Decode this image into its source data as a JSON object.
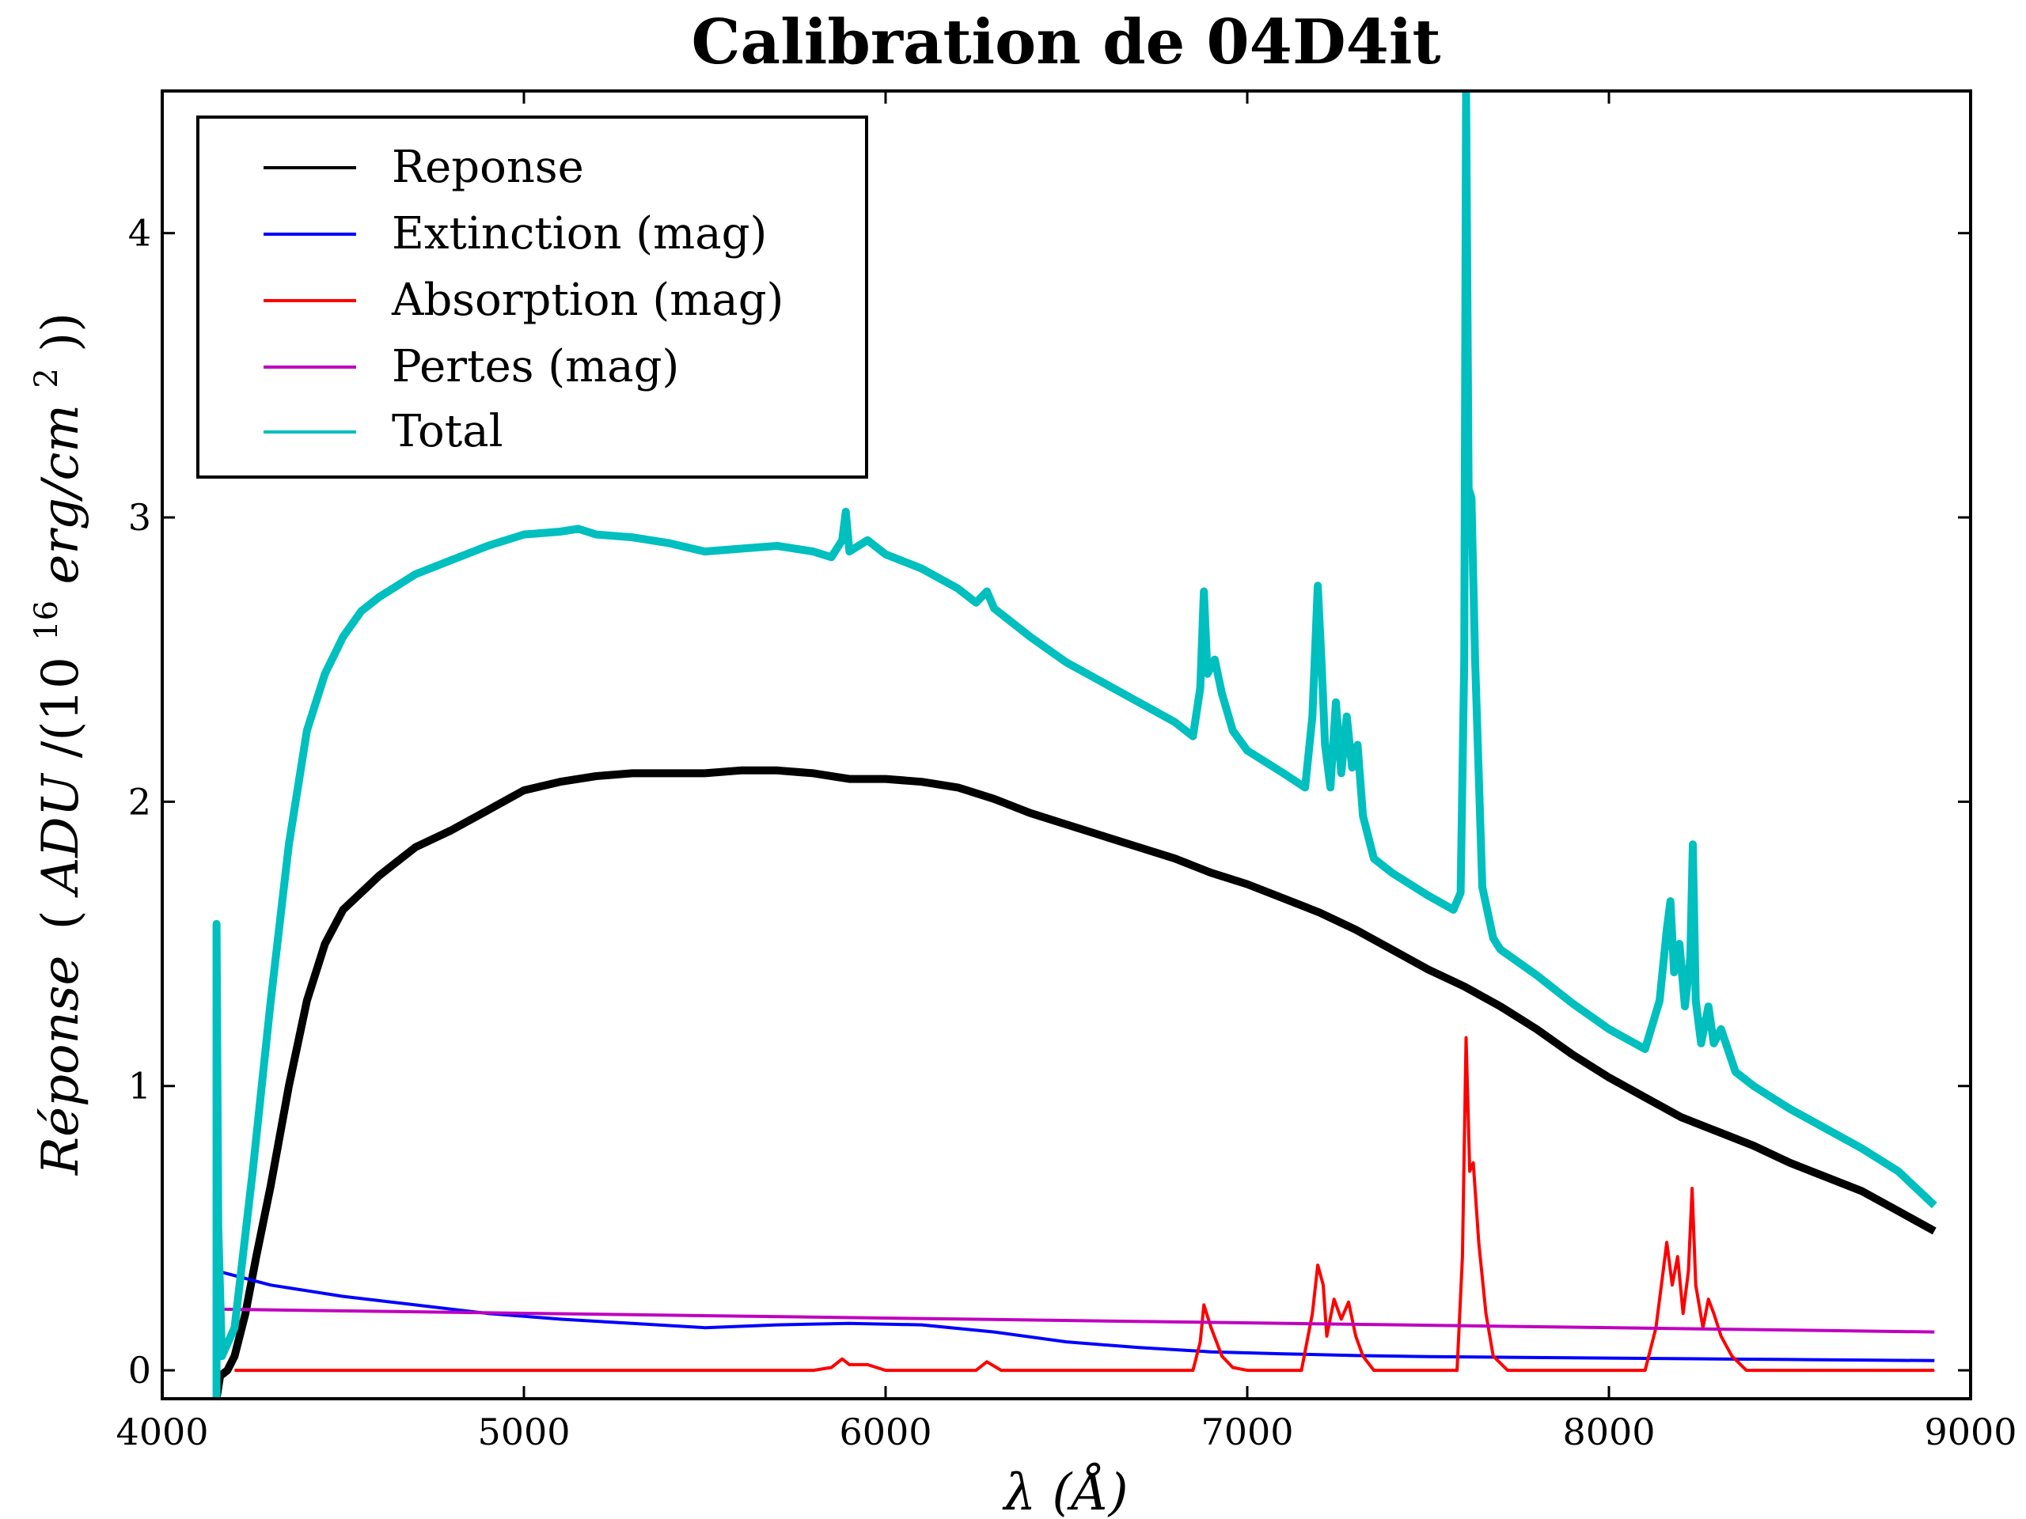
{
  "chart_data": {
    "type": "line",
    "title": "Calibration de 04D4it",
    "xlabel": "λ (Å)",
    "ylabel": "Réponse (ADU/(10^16 erg/cm^2))",
    "ylabel_parts": {
      "italic1": "Réponse",
      "open": "(",
      "italic2": "ADU",
      "mid": "/(10",
      "sup16": "16",
      "italic3": "erg/cm",
      "sup2": "2",
      "close": "))"
    },
    "xlim": [
      4000,
      9000
    ],
    "ylim": [
      -0.1,
      4.5
    ],
    "xticks": [
      4000,
      5000,
      6000,
      7000,
      8000,
      9000
    ],
    "yticks": [
      0,
      1,
      2,
      3,
      4
    ],
    "legend_position": "top-left",
    "series": [
      {
        "name": "Reponse",
        "color": "#000000",
        "width": 10,
        "points": [
          [
            4150,
            -0.1
          ],
          [
            4160,
            -0.02
          ],
          [
            4180,
            0.0
          ],
          [
            4200,
            0.05
          ],
          [
            4230,
            0.2
          ],
          [
            4260,
            0.4
          ],
          [
            4300,
            0.65
          ],
          [
            4350,
            1.0
          ],
          [
            4400,
            1.3
          ],
          [
            4450,
            1.5
          ],
          [
            4500,
            1.62
          ],
          [
            4600,
            1.74
          ],
          [
            4700,
            1.84
          ],
          [
            4800,
            1.9
          ],
          [
            4900,
            1.97
          ],
          [
            5000,
            2.04
          ],
          [
            5100,
            2.07
          ],
          [
            5200,
            2.09
          ],
          [
            5300,
            2.1
          ],
          [
            5400,
            2.1
          ],
          [
            5500,
            2.1
          ],
          [
            5600,
            2.11
          ],
          [
            5700,
            2.11
          ],
          [
            5800,
            2.1
          ],
          [
            5900,
            2.08
          ],
          [
            6000,
            2.08
          ],
          [
            6100,
            2.07
          ],
          [
            6200,
            2.05
          ],
          [
            6300,
            2.01
          ],
          [
            6400,
            1.96
          ],
          [
            6500,
            1.92
          ],
          [
            6600,
            1.88
          ],
          [
            6700,
            1.84
          ],
          [
            6800,
            1.8
          ],
          [
            6900,
            1.75
          ],
          [
            7000,
            1.71
          ],
          [
            7100,
            1.66
          ],
          [
            7200,
            1.61
          ],
          [
            7300,
            1.55
          ],
          [
            7400,
            1.48
          ],
          [
            7500,
            1.41
          ],
          [
            7600,
            1.35
          ],
          [
            7700,
            1.28
          ],
          [
            7800,
            1.2
          ],
          [
            7900,
            1.11
          ],
          [
            8000,
            1.03
          ],
          [
            8100,
            0.96
          ],
          [
            8200,
            0.89
          ],
          [
            8300,
            0.84
          ],
          [
            8400,
            0.79
          ],
          [
            8500,
            0.73
          ],
          [
            8600,
            0.68
          ],
          [
            8700,
            0.63
          ],
          [
            8800,
            0.56
          ],
          [
            8900,
            0.49
          ]
        ]
      },
      {
        "name": "Extinction (mag)",
        "color": "#0000ff",
        "width": 4,
        "points": [
          [
            4150,
            0.35
          ],
          [
            4300,
            0.3
          ],
          [
            4500,
            0.26
          ],
          [
            4700,
            0.23
          ],
          [
            4900,
            0.2
          ],
          [
            5100,
            0.18
          ],
          [
            5300,
            0.165
          ],
          [
            5500,
            0.15
          ],
          [
            5700,
            0.16
          ],
          [
            5900,
            0.165
          ],
          [
            6100,
            0.16
          ],
          [
            6300,
            0.135
          ],
          [
            6500,
            0.1
          ],
          [
            6700,
            0.08
          ],
          [
            6900,
            0.065
          ],
          [
            7100,
            0.058
          ],
          [
            7300,
            0.052
          ],
          [
            7500,
            0.048
          ],
          [
            7700,
            0.046
          ],
          [
            7900,
            0.044
          ],
          [
            8100,
            0.042
          ],
          [
            8300,
            0.04
          ],
          [
            8500,
            0.038
          ],
          [
            8700,
            0.036
          ],
          [
            8900,
            0.034
          ]
        ]
      },
      {
        "name": "Absorption (mag)",
        "color": "#ff0000",
        "width": 4,
        "points": [
          [
            4200,
            0.0
          ],
          [
            5800,
            0.0
          ],
          [
            5850,
            0.01
          ],
          [
            5880,
            0.04
          ],
          [
            5900,
            0.02
          ],
          [
            5950,
            0.02
          ],
          [
            6000,
            0.0
          ],
          [
            6250,
            0.0
          ],
          [
            6280,
            0.03
          ],
          [
            6320,
            0.0
          ],
          [
            6850,
            0.0
          ],
          [
            6870,
            0.1
          ],
          [
            6880,
            0.23
          ],
          [
            6900,
            0.15
          ],
          [
            6930,
            0.05
          ],
          [
            6960,
            0.01
          ],
          [
            7000,
            0.0
          ],
          [
            7150,
            0.0
          ],
          [
            7180,
            0.2
          ],
          [
            7195,
            0.37
          ],
          [
            7210,
            0.3
          ],
          [
            7220,
            0.12
          ],
          [
            7240,
            0.25
          ],
          [
            7260,
            0.18
          ],
          [
            7280,
            0.24
          ],
          [
            7300,
            0.12
          ],
          [
            7320,
            0.05
          ],
          [
            7350,
            0.0
          ],
          [
            7580,
            0.0
          ],
          [
            7595,
            0.4
          ],
          [
            7605,
            1.17
          ],
          [
            7615,
            0.7
          ],
          [
            7625,
            0.73
          ],
          [
            7640,
            0.45
          ],
          [
            7660,
            0.2
          ],
          [
            7680,
            0.05
          ],
          [
            7720,
            0.0
          ],
          [
            8100,
            0.0
          ],
          [
            8130,
            0.15
          ],
          [
            8150,
            0.35
          ],
          [
            8160,
            0.45
          ],
          [
            8175,
            0.3
          ],
          [
            8190,
            0.4
          ],
          [
            8205,
            0.2
          ],
          [
            8220,
            0.35
          ],
          [
            8230,
            0.64
          ],
          [
            8240,
            0.3
          ],
          [
            8260,
            0.15
          ],
          [
            8275,
            0.25
          ],
          [
            8290,
            0.2
          ],
          [
            8310,
            0.12
          ],
          [
            8340,
            0.05
          ],
          [
            8380,
            0.0
          ],
          [
            8900,
            0.0
          ]
        ]
      },
      {
        "name": "Pertes (mag)",
        "color": "#bf00bf",
        "width": 4,
        "points": [
          [
            4150,
            0.215
          ],
          [
            8900,
            0.135
          ]
        ]
      },
      {
        "name": "Total",
        "color": "#00bfbf",
        "width": 10,
        "points": [
          [
            4150,
            -0.1
          ],
          [
            4150,
            1.57
          ],
          [
            4155,
            0.5
          ],
          [
            4165,
            0.05
          ],
          [
            4200,
            0.15
          ],
          [
            4250,
            0.7
          ],
          [
            4300,
            1.3
          ],
          [
            4350,
            1.85
          ],
          [
            4400,
            2.25
          ],
          [
            4450,
            2.45
          ],
          [
            4500,
            2.58
          ],
          [
            4550,
            2.67
          ],
          [
            4600,
            2.72
          ],
          [
            4700,
            2.8
          ],
          [
            4800,
            2.85
          ],
          [
            4900,
            2.9
          ],
          [
            5000,
            2.94
          ],
          [
            5100,
            2.95
          ],
          [
            5150,
            2.96
          ],
          [
            5200,
            2.94
          ],
          [
            5300,
            2.93
          ],
          [
            5400,
            2.91
          ],
          [
            5500,
            2.88
          ],
          [
            5600,
            2.89
          ],
          [
            5700,
            2.9
          ],
          [
            5800,
            2.88
          ],
          [
            5850,
            2.86
          ],
          [
            5880,
            2.92
          ],
          [
            5890,
            3.02
          ],
          [
            5900,
            2.88
          ],
          [
            5950,
            2.92
          ],
          [
            6000,
            2.87
          ],
          [
            6100,
            2.82
          ],
          [
            6200,
            2.75
          ],
          [
            6250,
            2.7
          ],
          [
            6280,
            2.74
          ],
          [
            6300,
            2.68
          ],
          [
            6400,
            2.58
          ],
          [
            6500,
            2.49
          ],
          [
            6600,
            2.42
          ],
          [
            6700,
            2.35
          ],
          [
            6800,
            2.28
          ],
          [
            6850,
            2.23
          ],
          [
            6870,
            2.4
          ],
          [
            6880,
            2.74
          ],
          [
            6890,
            2.45
          ],
          [
            6910,
            2.5
          ],
          [
            6930,
            2.38
          ],
          [
            6960,
            2.25
          ],
          [
            7000,
            2.18
          ],
          [
            7100,
            2.1
          ],
          [
            7160,
            2.05
          ],
          [
            7180,
            2.3
          ],
          [
            7195,
            2.76
          ],
          [
            7205,
            2.5
          ],
          [
            7215,
            2.2
          ],
          [
            7230,
            2.05
          ],
          [
            7245,
            2.35
          ],
          [
            7260,
            2.1
          ],
          [
            7275,
            2.3
          ],
          [
            7290,
            2.12
          ],
          [
            7305,
            2.2
          ],
          [
            7320,
            1.95
          ],
          [
            7350,
            1.8
          ],
          [
            7400,
            1.75
          ],
          [
            7500,
            1.67
          ],
          [
            7570,
            1.62
          ],
          [
            7590,
            1.68
          ],
          [
            7600,
            2.5
          ],
          [
            7605,
            4.5
          ],
          [
            7612,
            3.1
          ],
          [
            7620,
            3.07
          ],
          [
            7630,
            2.5
          ],
          [
            7650,
            1.7
          ],
          [
            7680,
            1.52
          ],
          [
            7700,
            1.48
          ],
          [
            7800,
            1.39
          ],
          [
            7900,
            1.29
          ],
          [
            8000,
            1.2
          ],
          [
            8100,
            1.13
          ],
          [
            8140,
            1.3
          ],
          [
            8160,
            1.55
          ],
          [
            8170,
            1.65
          ],
          [
            8180,
            1.4
          ],
          [
            8195,
            1.5
          ],
          [
            8210,
            1.28
          ],
          [
            8225,
            1.45
          ],
          [
            8232,
            1.85
          ],
          [
            8240,
            1.3
          ],
          [
            8255,
            1.15
          ],
          [
            8275,
            1.28
          ],
          [
            8290,
            1.15
          ],
          [
            8310,
            1.2
          ],
          [
            8350,
            1.05
          ],
          [
            8400,
            1.0
          ],
          [
            8500,
            0.92
          ],
          [
            8600,
            0.85
          ],
          [
            8700,
            0.78
          ],
          [
            8800,
            0.7
          ],
          [
            8900,
            0.58
          ]
        ]
      }
    ]
  }
}
